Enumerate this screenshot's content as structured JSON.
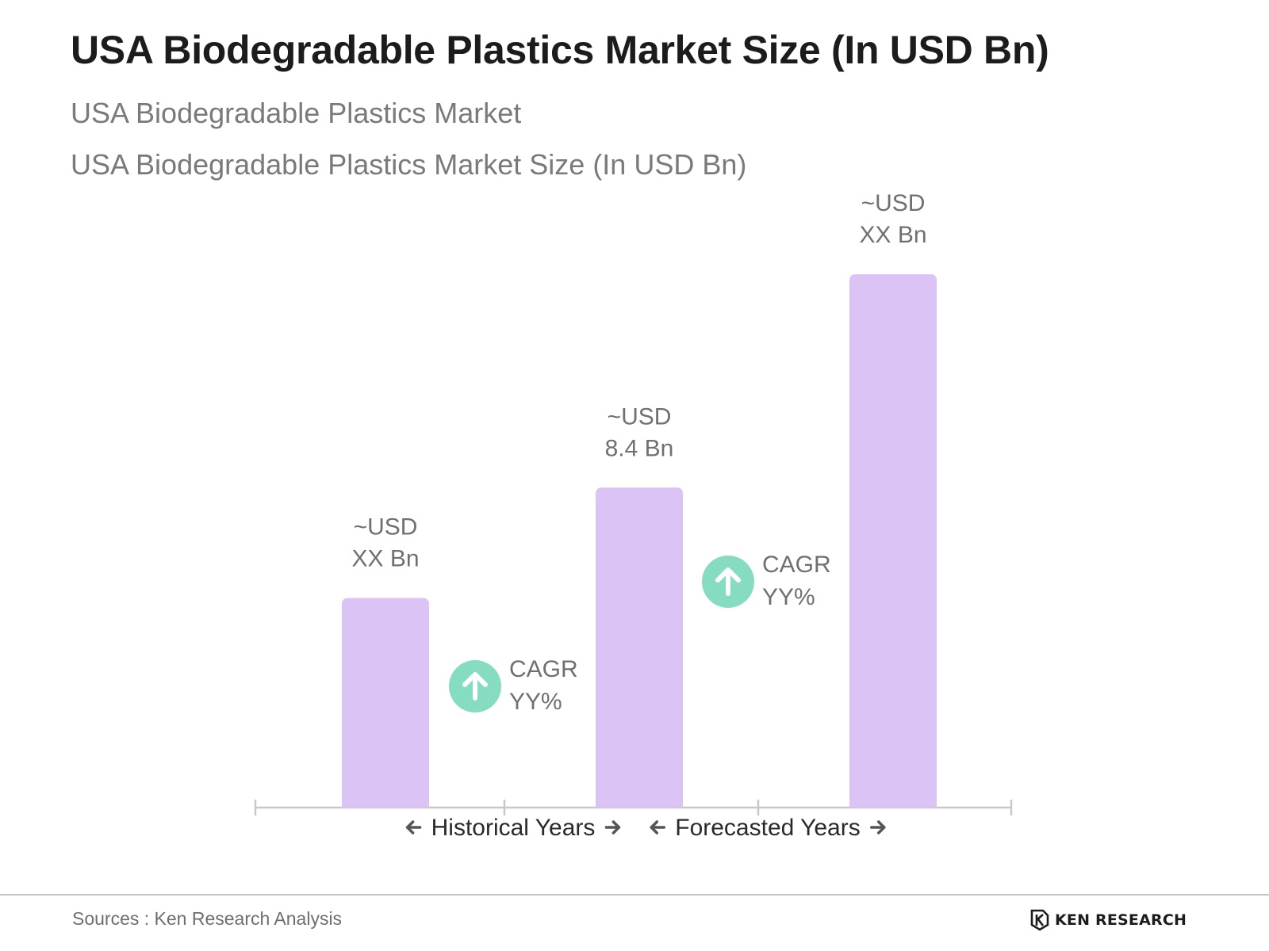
{
  "header": {
    "title": "USA Biodegradable Plastics Market Size (In USD Bn)",
    "subtitle_1": "USA Biodegradable Plastics Market",
    "subtitle_2": "USA Biodegradable Plastics Market Size (In USD Bn)"
  },
  "colors": {
    "bar": "#dcc3f6",
    "cagr_circle": "#86dcc1",
    "axis": "#c8c8c8",
    "label": "#707070",
    "period_label": "#2a2a2a"
  },
  "chart_data": {
    "type": "bar",
    "title": "USA Biodegradable Plastics Market Size (In USD Bn)",
    "categories": [
      "",
      "",
      ""
    ],
    "values": [
      5.5,
      8.4,
      14.0
    ],
    "value_labels": [
      [
        "~USD",
        "XX Bn"
      ],
      [
        "~USD",
        "8.4 Bn"
      ],
      [
        "~USD",
        "XX Bn"
      ]
    ],
    "ylim": [
      0,
      16
    ],
    "grid": false,
    "cagr_annotations": [
      {
        "line1": "CAGR",
        "line2": "YY%",
        "icon": "arrow-up-icon"
      },
      {
        "line1": "CAGR",
        "line2": "YY%",
        "icon": "arrow-up-icon"
      }
    ],
    "period_labels": [
      "Historical Years",
      "Forecasted Years"
    ]
  },
  "footer": {
    "source": "Sources : Ken Research Analysis",
    "logo_text": "KEN RESEARCH"
  }
}
